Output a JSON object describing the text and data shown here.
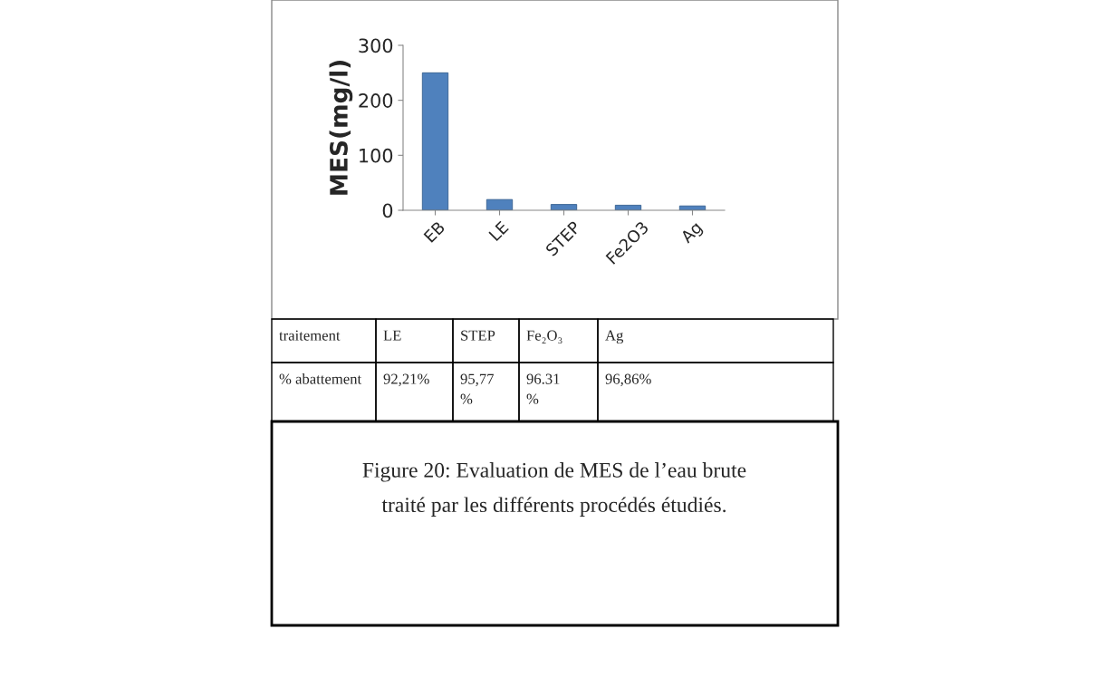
{
  "chart_data": {
    "type": "bar",
    "ylabel": "MES(mg/l)",
    "categories": [
      "EB",
      "LE",
      "STEP",
      "Fe2O3",
      "Ag"
    ],
    "values": [
      250,
      19.5,
      10.6,
      9.2,
      7.9
    ],
    "color": "#4f81bd",
    "ylim": [
      0,
      300
    ],
    "yticks": [
      0,
      100,
      200,
      300
    ],
    "grid": false,
    "annotations": [
      "traitement",
      "LE",
      "STEP",
      "Fe₂O₃",
      "Ag",
      "% abattement",
      "92,21%",
      "95,77\n%",
      "96.31\n%",
      "96,86%",
      "Figure 20: Evaluation de MES de l’eau brute\ntraité par les différents procédés étudiés."
    ]
  }
}
